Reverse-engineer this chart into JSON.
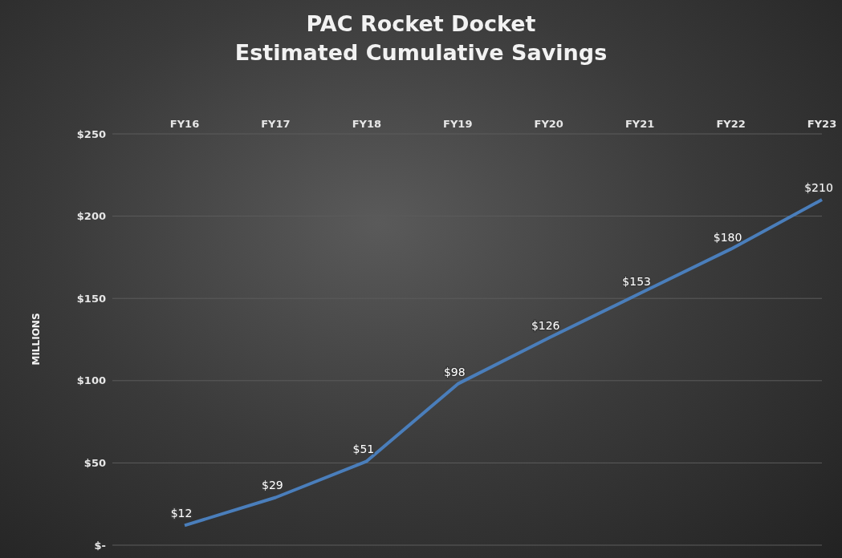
{
  "chart_data": {
    "type": "line",
    "title": "PAC Rocket Docket\nEstimated Cumulative Savings",
    "ylabel": "MILLIONS",
    "categories": [
      "FY16",
      "FY17",
      "FY18",
      "FY19",
      "FY20",
      "FY21",
      "FY22",
      "FY23"
    ],
    "series": [
      {
        "color": "#4a7ebb",
        "values": [
          12,
          29,
          51,
          98,
          126,
          153,
          180,
          210
        ],
        "value_labels": [
          "$12",
          "$29",
          "$51",
          "$98",
          "$126",
          "$153",
          "$180",
          "$210"
        ]
      }
    ],
    "ylim": [
      0,
      250
    ],
    "yticks": [
      {
        "value": 0,
        "label": "$-"
      },
      {
        "value": 50,
        "label": "$50"
      },
      {
        "value": 100,
        "label": "$100"
      },
      {
        "value": 150,
        "label": "$150"
      },
      {
        "value": 200,
        "label": "$200"
      },
      {
        "value": 250,
        "label": "$250"
      }
    ],
    "grid": "y",
    "marker": "none",
    "line_style": "solid",
    "legend": false
  }
}
